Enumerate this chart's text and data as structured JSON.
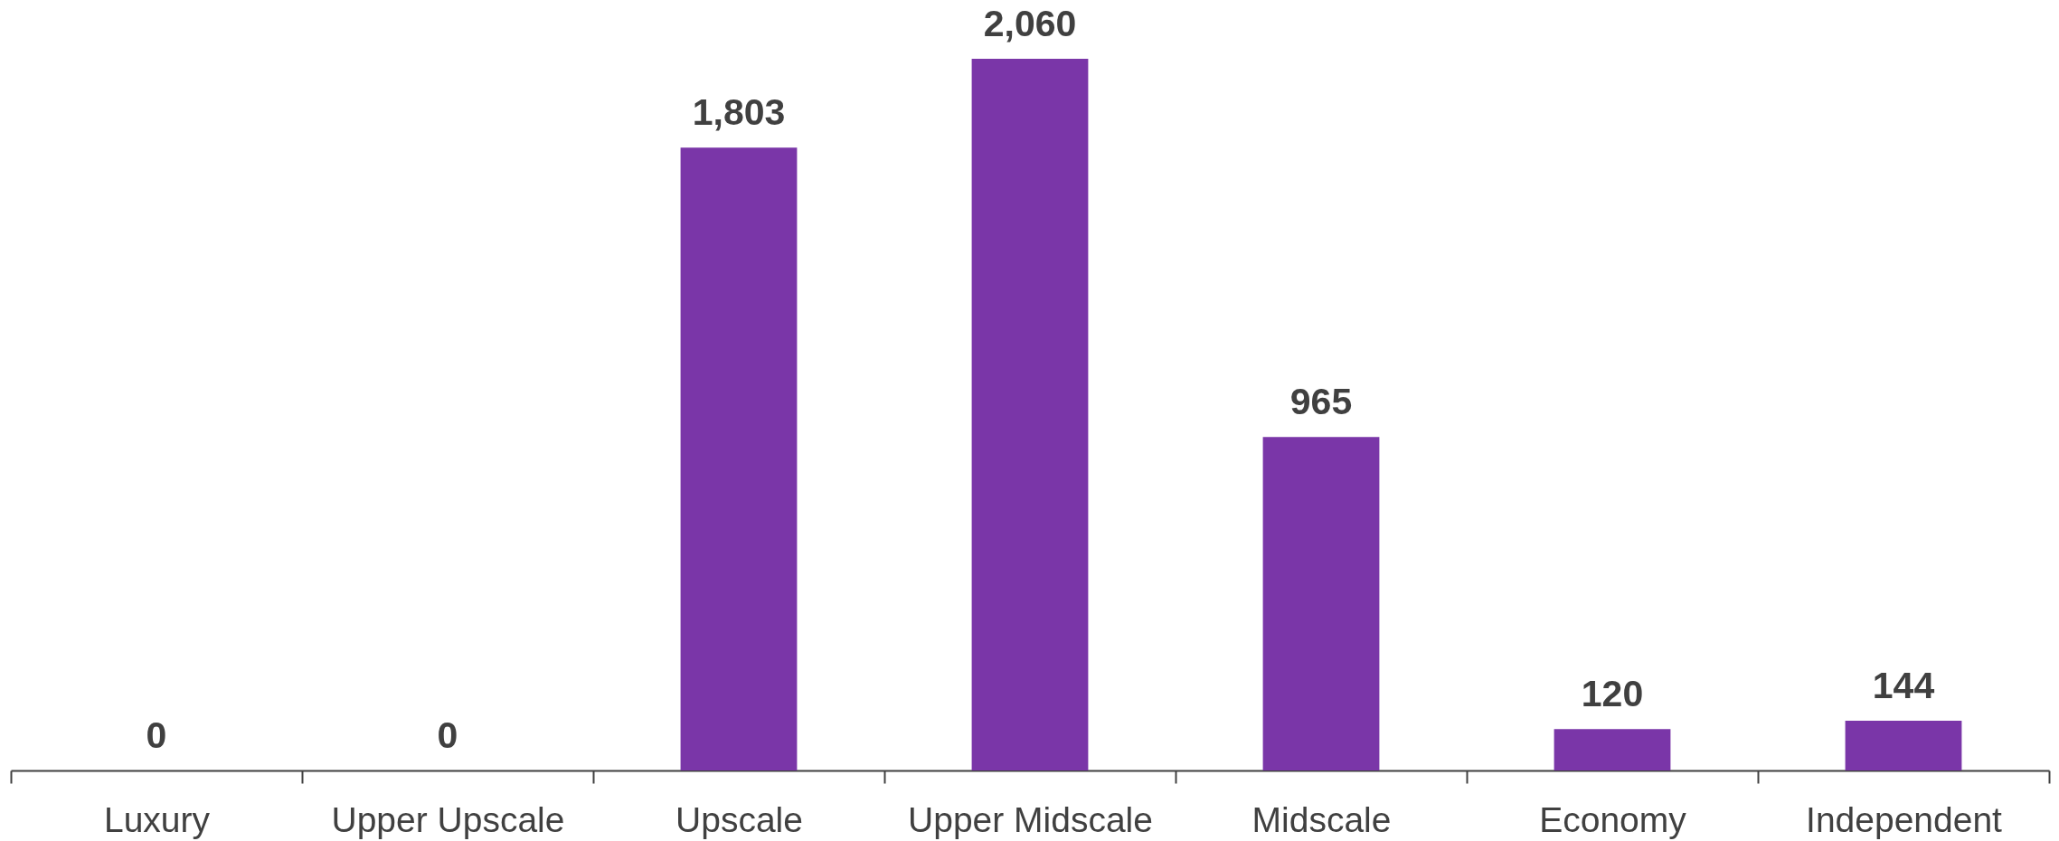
{
  "chart_data": {
    "type": "bar",
    "categories": [
      "Luxury",
      "Upper Upscale",
      "Upscale",
      "Upper Midscale",
      "Midscale",
      "Economy",
      "Independent"
    ],
    "values": [
      0,
      0,
      1803,
      2060,
      965,
      120,
      144
    ],
    "value_labels": [
      "0",
      "0",
      "1,803",
      "2,060",
      "965",
      "120",
      "144"
    ],
    "color": "#7a36a8"
  }
}
